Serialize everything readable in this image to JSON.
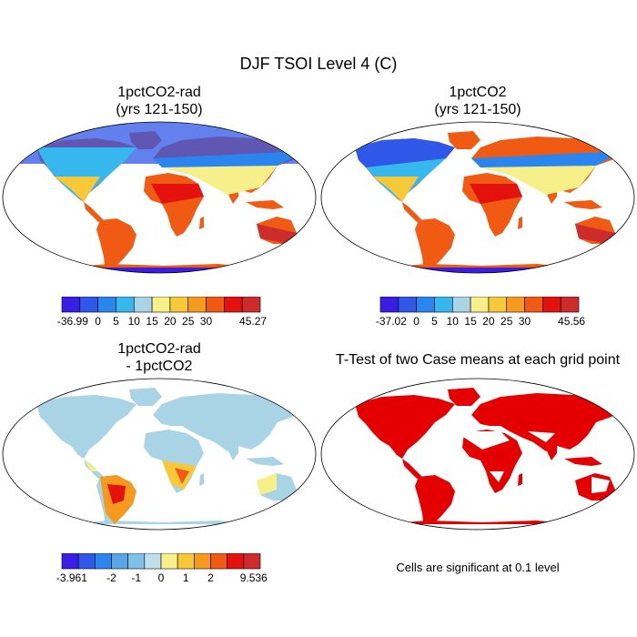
{
  "title": "DJF TSOI Level 4 (C)",
  "panels": [
    {
      "id": "rad",
      "title_line1": "1pctCO2-rad",
      "title_line2": "(yrs 121-150)",
      "colorbar": {
        "colors": [
          "#3a1ee6",
          "#2f57e8",
          "#2a86ee",
          "#36b8ee",
          "#a8d4e6",
          "#f7f08a",
          "#f6c83a",
          "#f59a1f",
          "#f05a12",
          "#e4120f",
          "#cc2c2c"
        ],
        "labels": [
          "-36.99",
          "0",
          "5",
          "10",
          "15",
          "20",
          "25",
          "30",
          "45.27"
        ]
      }
    },
    {
      "id": "ctl",
      "title_line1": "1pctCO2",
      "title_line2": "(yrs 121-150)",
      "colorbar": {
        "colors": [
          "#3a1ee6",
          "#2f57e8",
          "#2a86ee",
          "#36b8ee",
          "#a8d4e6",
          "#f7f08a",
          "#f6c83a",
          "#f59a1f",
          "#f05a12",
          "#e4120f",
          "#cc2c2c"
        ],
        "labels": [
          "-37.02",
          "0",
          "5",
          "10",
          "15",
          "20",
          "25",
          "30",
          "45.56"
        ]
      }
    },
    {
      "id": "diff",
      "title_line1": "1pctCO2-rad",
      "title_line2": "- 1pctCO2",
      "colorbar": {
        "colors": [
          "#3a1ee6",
          "#2f57e8",
          "#2a86ee",
          "#5aa6e6",
          "#7fc0e6",
          "#c0dfee",
          "#f7f08a",
          "#f6c83a",
          "#f59a1f",
          "#f05a12",
          "#e4120f",
          "#cc2c2c"
        ],
        "labels": [
          "-3.961",
          "-2",
          "-1",
          "0",
          "1",
          "2",
          "9.536"
        ]
      }
    },
    {
      "id": "ttest",
      "title_line1": "T-Test of two Case means at each grid point",
      "note": "Cells are significant at 0.1 level",
      "significant_color": "#e40000"
    }
  ]
}
